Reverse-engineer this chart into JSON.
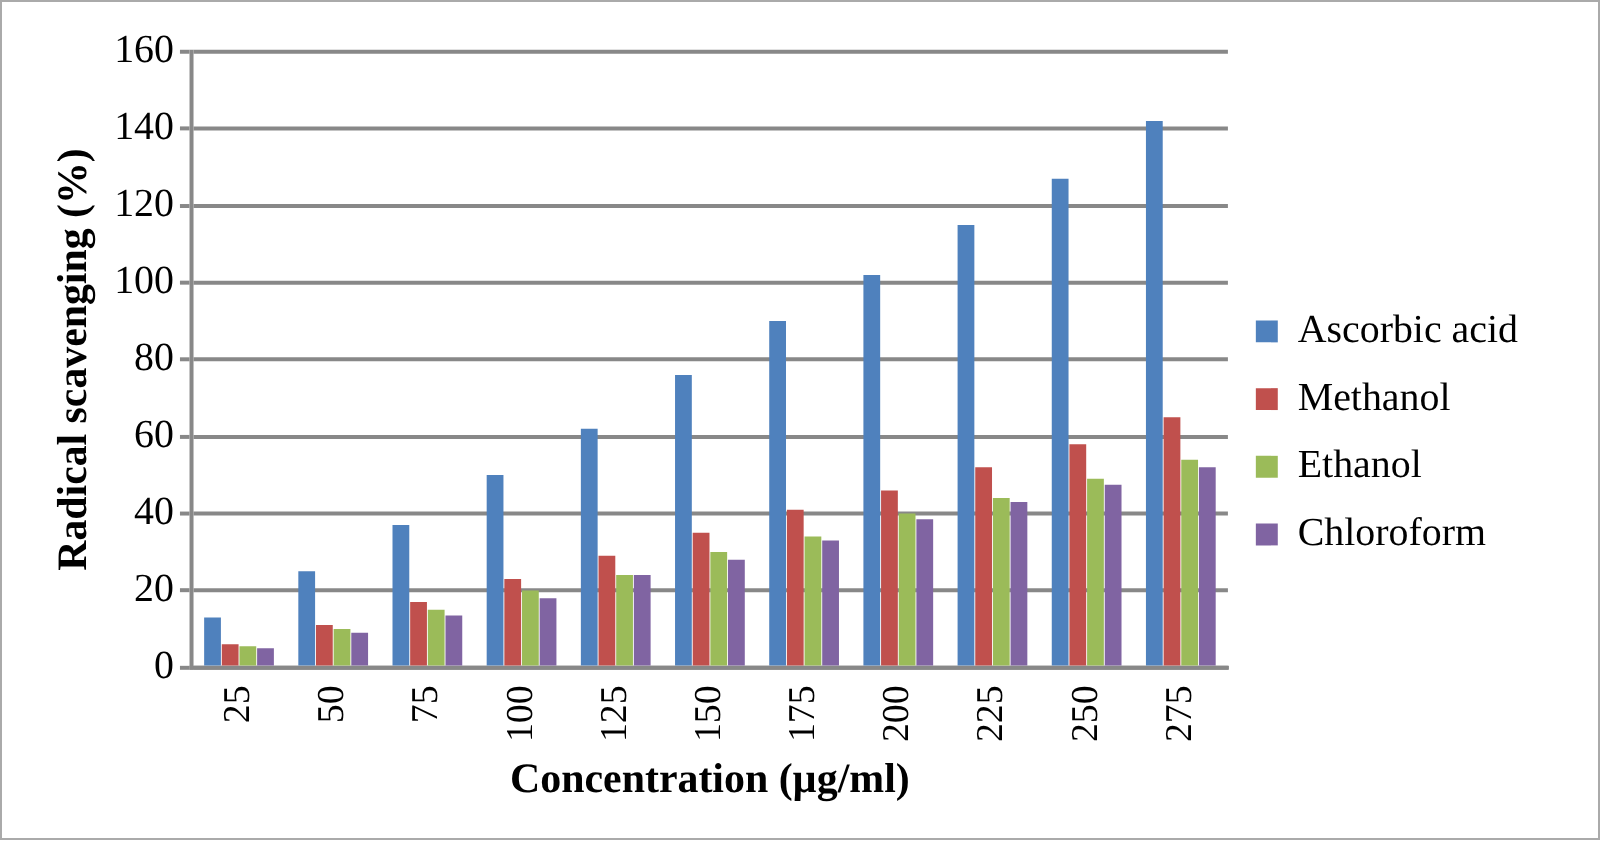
{
  "chart_data": {
    "type": "bar",
    "xlabel": "Concentration (µg/ml)",
    "ylabel": "Radical scavenging (%)",
    "categories": [
      "25",
      "50",
      "75",
      "100",
      "125",
      "150",
      "175",
      "200",
      "225",
      "250",
      "275"
    ],
    "series": [
      {
        "name": "Ascorbic acid",
        "color": "#4f81bd",
        "values": [
          13,
          25,
          37,
          50,
          62,
          76,
          90,
          102,
          115,
          127,
          142
        ]
      },
      {
        "name": "Methanol",
        "color": "#c0504d",
        "values": [
          6,
          11,
          17,
          23,
          29,
          35,
          41,
          46,
          52,
          58,
          65
        ]
      },
      {
        "name": "Ethanol",
        "color": "#9bbb59",
        "values": [
          5.5,
          10,
          15,
          20,
          24,
          30,
          34,
          40,
          44,
          49,
          54
        ]
      },
      {
        "name": "Chloroform",
        "color": "#8064a2",
        "values": [
          5,
          9,
          13.5,
          18,
          24,
          28,
          33,
          38.5,
          43,
          47.5,
          52
        ]
      }
    ],
    "ylim": [
      0,
      160
    ],
    "yticks": [
      0,
      20,
      40,
      60,
      80,
      100,
      120,
      140,
      160
    ],
    "grid": "y",
    "legend": "right"
  }
}
